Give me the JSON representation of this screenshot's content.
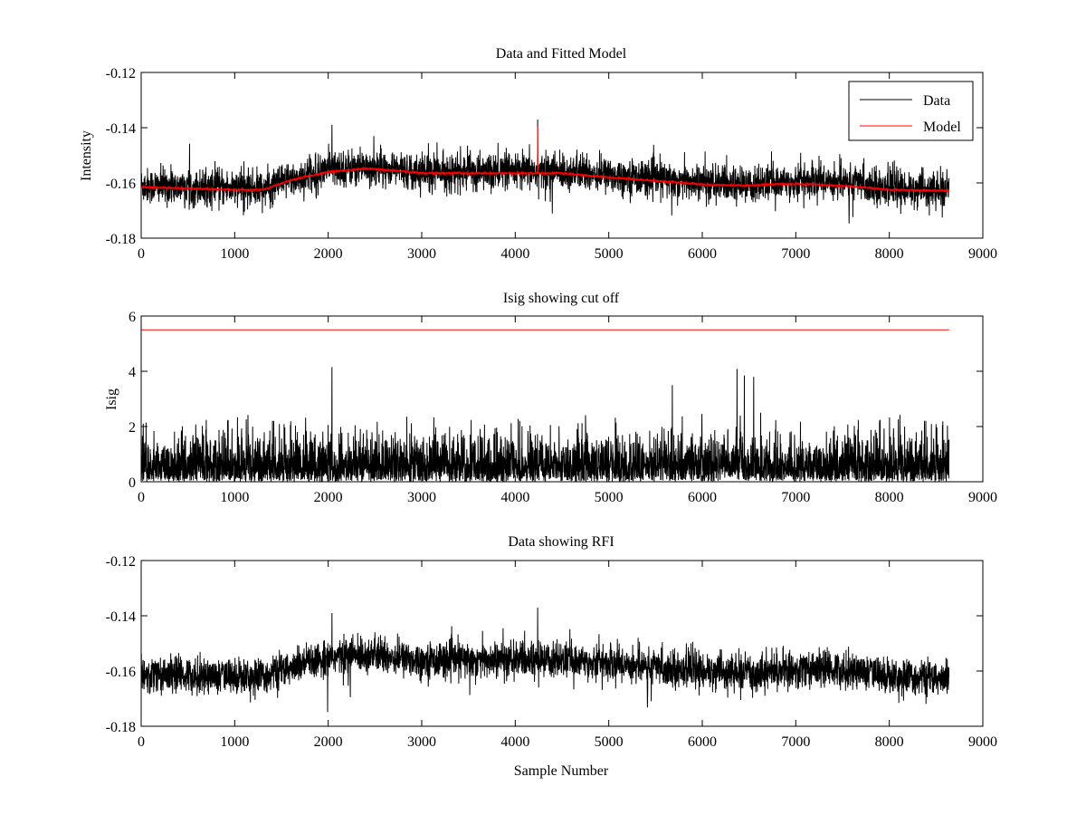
{
  "figure": {
    "background": "#ffffff"
  },
  "chart_data": [
    {
      "type": "line",
      "title": "Data and Fitted Model",
      "xlabel": "",
      "ylabel": "Intensity",
      "xlim": [
        0,
        9000
      ],
      "ylim": [
        -0.18,
        -0.12
      ],
      "xticks": [
        0,
        1000,
        2000,
        3000,
        4000,
        5000,
        6000,
        7000,
        8000,
        9000
      ],
      "xtick_labels": [
        "0",
        "1000",
        "2000",
        "3000",
        "4000",
        "5000",
        "6000",
        "7000",
        "8000",
        "9000"
      ],
      "yticks": [
        -0.18,
        -0.16,
        -0.14,
        -0.12
      ],
      "ytick_labels": [
        "-0.18",
        "-0.16",
        "-0.14",
        "-0.12"
      ],
      "legend": {
        "placement": "top-right",
        "entries": [
          "Data",
          "Model"
        ]
      },
      "n_samples": 8640,
      "series": [
        {
          "name": "Data",
          "color": "#000000",
          "style": "noisy",
          "noise_sd": 0.004,
          "trend_x": [
            0,
            1000,
            1300,
            1600,
            2000,
            2400,
            2700,
            3000,
            4000,
            4200,
            4500,
            5000,
            6000,
            6500,
            6700,
            7200,
            7700,
            8000,
            8640
          ],
          "trend_y": [
            -0.161,
            -0.162,
            -0.162,
            -0.159,
            -0.155,
            -0.154,
            -0.155,
            -0.156,
            -0.156,
            -0.156,
            -0.156,
            -0.157,
            -0.16,
            -0.161,
            -0.16,
            -0.159,
            -0.16,
            -0.162,
            -0.163
          ],
          "spikes": [
            {
              "x": 4240,
              "y": -0.137
            },
            {
              "x": 4250,
              "y": -0.166
            },
            {
              "x": 2040,
              "y": -0.139
            }
          ]
        },
        {
          "name": "Model",
          "color": "#ff0000",
          "style": "smooth",
          "trend_x": [
            0,
            1000,
            1300,
            1600,
            2000,
            2400,
            2700,
            3000,
            4000,
            4200,
            4500,
            5000,
            6000,
            6500,
            6700,
            7200,
            7700,
            8000,
            8640
          ],
          "trend_y": [
            -0.1615,
            -0.1625,
            -0.1625,
            -0.159,
            -0.156,
            -0.1548,
            -0.1555,
            -0.1565,
            -0.1565,
            -0.1565,
            -0.1565,
            -0.158,
            -0.1605,
            -0.161,
            -0.1605,
            -0.1605,
            -0.1615,
            -0.1625,
            -0.1628
          ],
          "spikes": [
            {
              "x": 4240,
              "y": -0.1395
            }
          ]
        }
      ]
    },
    {
      "type": "line",
      "title": "Isig showing cut off",
      "xlabel": "",
      "ylabel": "Isig",
      "xlim": [
        0,
        9000
      ],
      "ylim": [
        0,
        6
      ],
      "xticks": [
        0,
        1000,
        2000,
        3000,
        4000,
        5000,
        6000,
        7000,
        8000,
        9000
      ],
      "xtick_labels": [
        "0",
        "1000",
        "2000",
        "3000",
        "4000",
        "5000",
        "6000",
        "7000",
        "8000",
        "9000"
      ],
      "yticks": [
        0,
        2,
        4,
        6
      ],
      "ytick_labels": [
        "0",
        "2",
        "4",
        "6"
      ],
      "n_samples": 8640,
      "series": [
        {
          "color": "#000000",
          "style": "abs-noise",
          "scale": 0.8,
          "max": 4.2,
          "spikes": [
            {
              "x": 2040,
              "y": 4.15
            },
            {
              "x": 5680,
              "y": 3.5
            },
            {
              "x": 6450,
              "y": 3.85
            },
            {
              "x": 6550,
              "y": 3.8
            }
          ]
        },
        {
          "color": "#ff0000",
          "style": "constant",
          "value": 5.5,
          "x_range": [
            0,
            8640
          ]
        }
      ]
    },
    {
      "type": "line",
      "title": "Data showing RFI",
      "xlabel": "Sample Number",
      "ylabel": "",
      "xlim": [
        0,
        9000
      ],
      "ylim": [
        -0.18,
        -0.12
      ],
      "xticks": [
        0,
        1000,
        2000,
        3000,
        4000,
        5000,
        6000,
        7000,
        8000,
        9000
      ],
      "xtick_labels": [
        "0",
        "1000",
        "2000",
        "3000",
        "4000",
        "5000",
        "6000",
        "7000",
        "8000",
        "9000"
      ],
      "yticks": [
        -0.18,
        -0.16,
        -0.14,
        -0.12
      ],
      "ytick_labels": [
        "-0.18",
        "-0.16",
        "-0.14",
        "-0.12"
      ],
      "n_samples": 8640,
      "series": [
        {
          "color": "#000000",
          "style": "noisy",
          "noise_sd": 0.004,
          "trend_x": [
            0,
            1000,
            1300,
            1600,
            2000,
            2400,
            2700,
            3000,
            4000,
            4200,
            4500,
            5000,
            6000,
            6500,
            6700,
            7200,
            7700,
            8000,
            8640
          ],
          "trend_y": [
            -0.161,
            -0.162,
            -0.162,
            -0.159,
            -0.155,
            -0.154,
            -0.155,
            -0.156,
            -0.156,
            -0.156,
            -0.156,
            -0.157,
            -0.16,
            -0.161,
            -0.16,
            -0.159,
            -0.16,
            -0.162,
            -0.163
          ],
          "spikes": [
            {
              "x": 4240,
              "y": -0.137
            },
            {
              "x": 4250,
              "y": -0.166
            },
            {
              "x": 2040,
              "y": -0.139
            }
          ]
        }
      ]
    }
  ]
}
